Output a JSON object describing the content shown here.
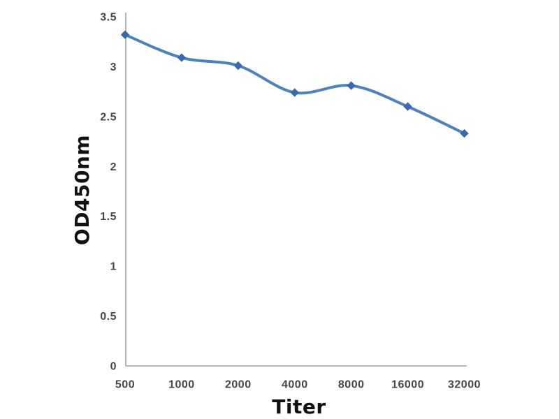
{
  "chart_data": {
    "type": "line",
    "title": "",
    "xlabel": "Titer",
    "ylabel": "OD450nm",
    "categories": [
      "500",
      "1000",
      "2000",
      "4000",
      "8000",
      "16000",
      "32000"
    ],
    "series": [
      {
        "values": [
          3.32,
          3.09,
          3.01,
          2.74,
          2.81,
          2.6,
          2.33
        ]
      }
    ],
    "ylim": [
      0,
      3.5
    ],
    "yticks": {
      "values": [
        0,
        0.5,
        1,
        1.5,
        2,
        2.5,
        3,
        3.5
      ],
      "labels": [
        "0",
        "0.5",
        "1",
        "1.5",
        "2",
        "2.5",
        "3",
        "3.5"
      ]
    },
    "grid": false,
    "legend": "none",
    "marker": "diamond",
    "line_smoothing": true,
    "colors": {
      "line": "#4f81bd",
      "marker": "#3c68ac",
      "axis": "#a3a3a3",
      "tick_text": "#474747",
      "axis_title_text": "#111111",
      "background": "#ffffff"
    }
  }
}
